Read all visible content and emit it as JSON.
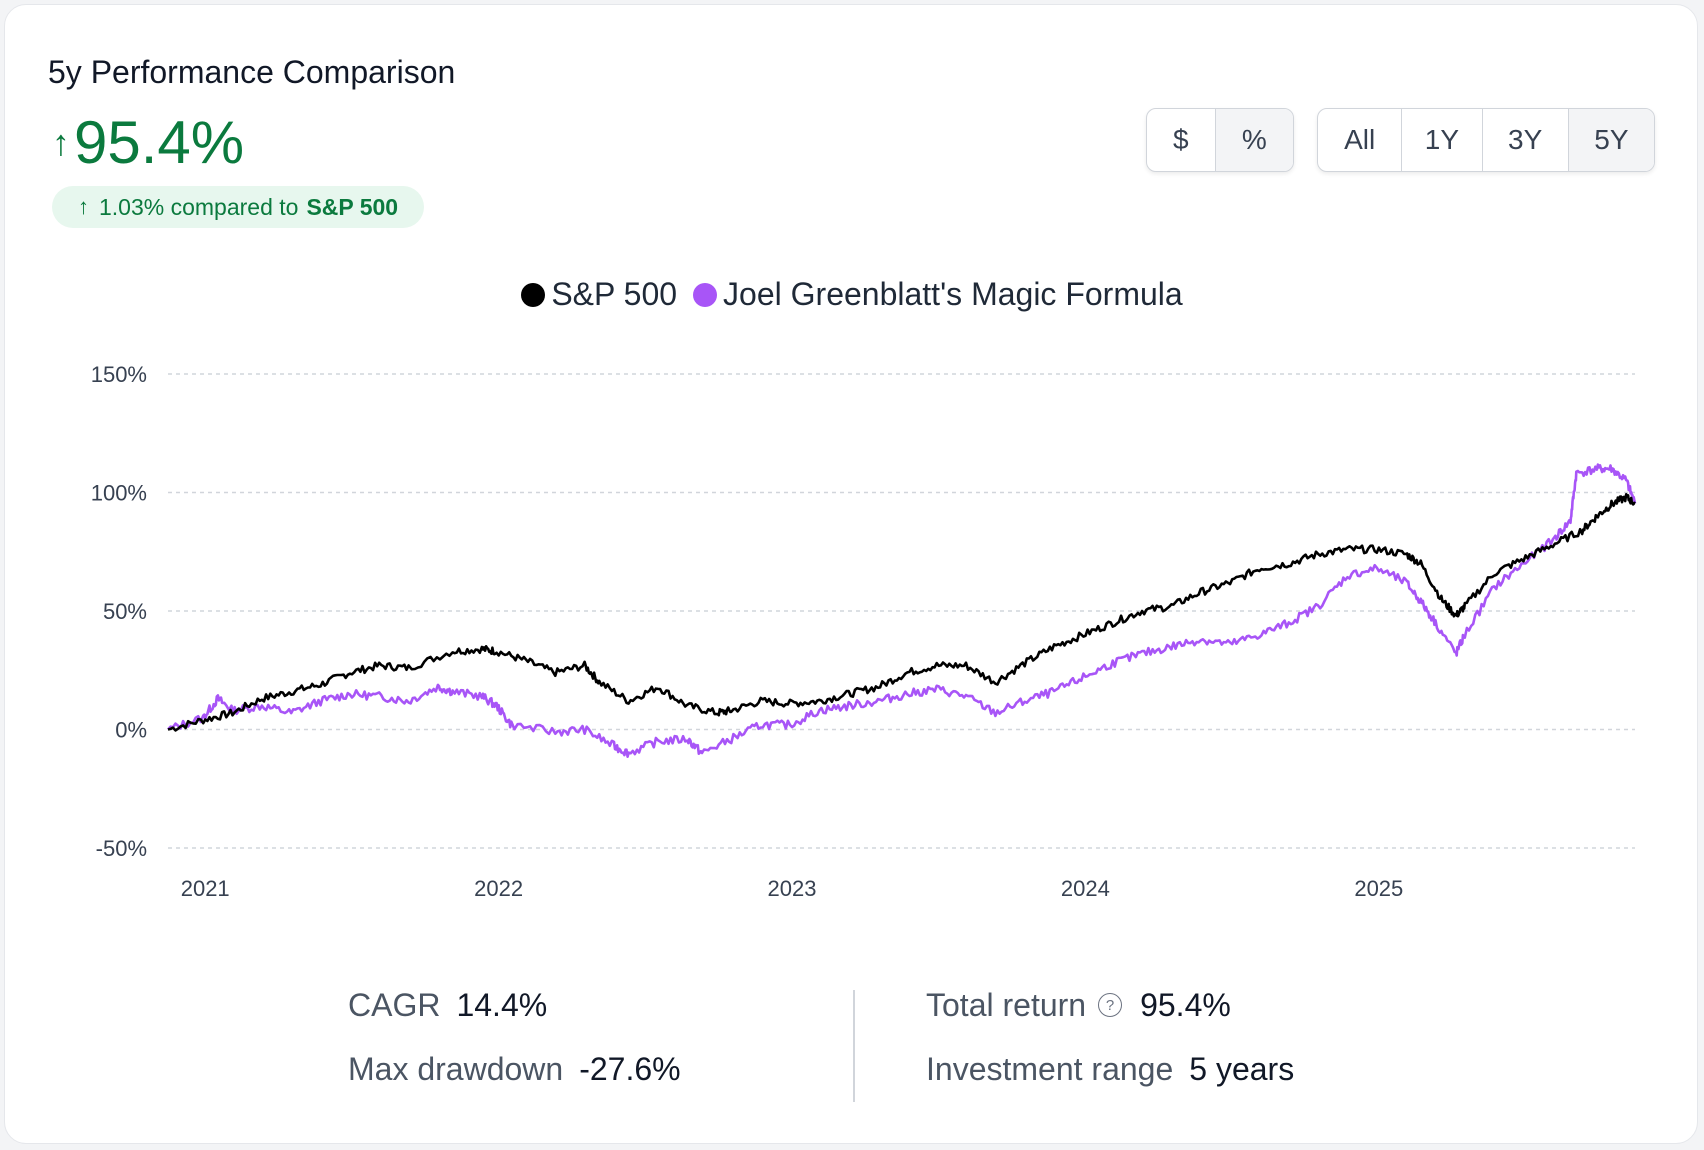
{
  "header": {
    "title": "5y Performance Comparison",
    "headline_value": "95.4%",
    "compare_value": "1.03% compared to",
    "compare_target": "S&P 500"
  },
  "controls": {
    "unit_options": [
      "$",
      "%"
    ],
    "unit_selected": "%",
    "range_options": [
      "All",
      "1Y",
      "3Y",
      "5Y"
    ],
    "range_selected": "5Y"
  },
  "colors": {
    "sp500": "#000000",
    "magic": "#a855f7",
    "positive": "#0b7a3e"
  },
  "chart_data": {
    "type": "line",
    "title": "",
    "xlabel": "",
    "ylabel": "",
    "ylim": [
      -50,
      150
    ],
    "yticks": [
      150,
      100,
      50,
      0,
      -50
    ],
    "ytick_labels": [
      "150%",
      "100%",
      "50%",
      "0%",
      "-50%"
    ],
    "xlim": [
      2020.88,
      2025.88
    ],
    "xticks": [
      2021,
      2022,
      2023,
      2024,
      2025
    ],
    "xtick_labels": [
      "2021",
      "2022",
      "2023",
      "2024",
      "2025"
    ],
    "grid": true,
    "legend_position": "top-center",
    "series": [
      {
        "name": "S&P 500",
        "color": "#000000",
        "x": [
          2020.88,
          2021.0,
          2021.1,
          2021.2,
          2021.3,
          2021.4,
          2021.5,
          2021.6,
          2021.7,
          2021.85,
          2021.95,
          2022.0,
          2022.1,
          2022.2,
          2022.3,
          2022.35,
          2022.45,
          2022.55,
          2022.65,
          2022.75,
          2022.8,
          2022.9,
          2023.0,
          2023.1,
          2023.2,
          2023.3,
          2023.4,
          2023.5,
          2023.6,
          2023.7,
          2023.8,
          2023.9,
          2024.0,
          2024.1,
          2024.2,
          2024.3,
          2024.4,
          2024.5,
          2024.6,
          2024.7,
          2024.8,
          2024.9,
          2025.0,
          2025.1,
          2025.15,
          2025.22,
          2025.27,
          2025.3,
          2025.4,
          2025.5,
          2025.6,
          2025.7,
          2025.75,
          2025.8,
          2025.85,
          2025.88
        ],
        "values": [
          0,
          4,
          7,
          13,
          16,
          19,
          24,
          27,
          26,
          33,
          34,
          33,
          29,
          24,
          27,
          20,
          12,
          18,
          10,
          7,
          8,
          12,
          11,
          12,
          15,
          18,
          24,
          27,
          27,
          20,
          28,
          35,
          40,
          45,
          50,
          52,
          58,
          62,
          68,
          70,
          74,
          76,
          76,
          74,
          70,
          55,
          48,
          52,
          66,
          72,
          78,
          84,
          90,
          95,
          98,
          95.4
        ]
      },
      {
        "name": "Joel Greenblatt's Magic Formula",
        "color": "#a855f7",
        "x": [
          2020.88,
          2021.0,
          2021.05,
          2021.1,
          2021.2,
          2021.3,
          2021.4,
          2021.5,
          2021.6,
          2021.7,
          2021.8,
          2021.85,
          2021.95,
          2022.0,
          2022.05,
          2022.2,
          2022.3,
          2022.4,
          2022.45,
          2022.55,
          2022.65,
          2022.7,
          2022.8,
          2022.9,
          2023.0,
          2023.1,
          2023.2,
          2023.3,
          2023.4,
          2023.5,
          2023.6,
          2023.7,
          2023.8,
          2023.9,
          2024.0,
          2024.1,
          2024.2,
          2024.3,
          2024.4,
          2024.5,
          2024.6,
          2024.7,
          2024.8,
          2024.9,
          2025.0,
          2025.1,
          2025.15,
          2025.2,
          2025.27,
          2025.3,
          2025.4,
          2025.5,
          2025.6,
          2025.66,
          2025.68,
          2025.75,
          2025.8,
          2025.85,
          2025.88
        ],
        "values": [
          0,
          5,
          13,
          8,
          10,
          7,
          12,
          15,
          14,
          12,
          18,
          16,
          14,
          10,
          2,
          -1,
          0,
          -7,
          -10,
          -5,
          -4,
          -10,
          -4,
          2,
          2,
          8,
          10,
          12,
          15,
          17,
          14,
          7,
          12,
          16,
          22,
          28,
          32,
          35,
          38,
          36,
          40,
          45,
          52,
          65,
          68,
          62,
          54,
          45,
          32,
          40,
          60,
          70,
          80,
          88,
          108,
          110,
          110,
          105,
          95.4
        ]
      }
    ]
  },
  "stats": {
    "cagr_label": "CAGR",
    "cagr_value": "14.4%",
    "maxdd_label": "Max drawdown",
    "maxdd_value": "-27.6%",
    "total_label": "Total return",
    "total_value": "95.4%",
    "range_label": "Investment range",
    "range_value": "5 years"
  }
}
